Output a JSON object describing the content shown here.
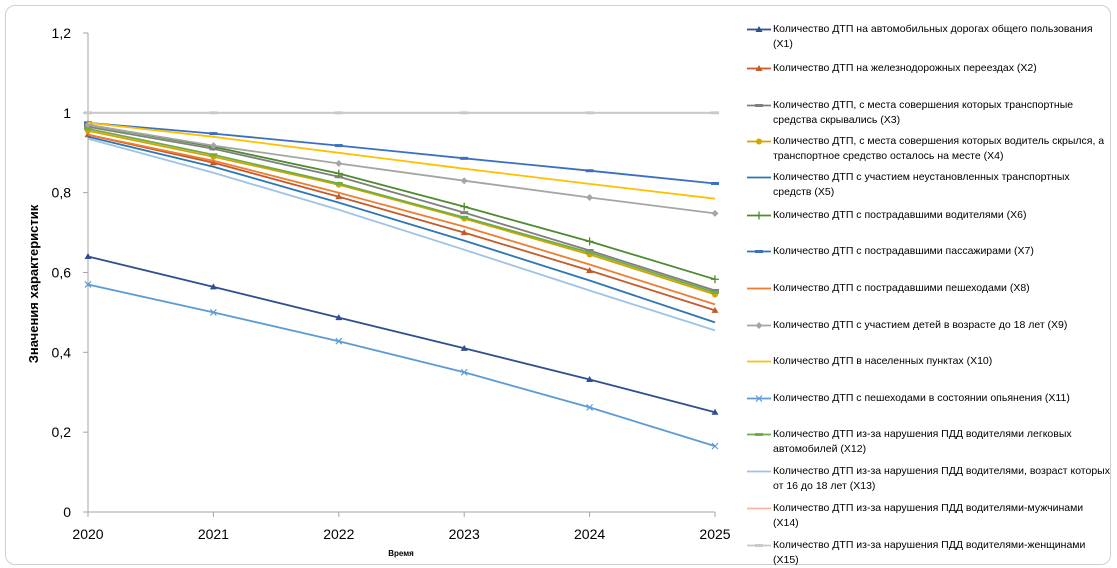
{
  "chart_data": {
    "type": "line",
    "ylabel": "Значения характеристик",
    "xlabel": "Время",
    "x": [
      "2020",
      "2021",
      "2022",
      "2023",
      "2024",
      "2025"
    ],
    "yticks": [
      "0",
      "0,2",
      "0,4",
      "0,6",
      "0,8",
      "1",
      "1,2"
    ],
    "ylim": [
      0,
      1.2
    ],
    "legend_position": "right",
    "series": [
      {
        "name": "Количество ДТП на автомобильных дорогах общего пользования (X1)",
        "color": "#2f4f8f",
        "marker": "triangle",
        "values": [
          0.64,
          0.564,
          0.487,
          0.41,
          0.332,
          0.25
        ]
      },
      {
        "name": "Количество ДТП на железнодорожных переездах (X2)",
        "color": "#c55a2a",
        "marker": "triangle",
        "values": [
          0.945,
          0.875,
          0.79,
          0.7,
          0.605,
          0.505
        ]
      },
      {
        "name": "Количество ДТП, с места совершения которых транспортные средства скрывались (X3)",
        "color": "#7f7f7f",
        "marker": "dash",
        "values": [
          0.965,
          0.91,
          0.84,
          0.75,
          0.655,
          0.555
        ]
      },
      {
        "name": "Количество ДТП, с места совершения которых водитель скрылся, а транспортное средство осталось на месте (X4)",
        "color": "#d4a500",
        "marker": "circle",
        "values": [
          0.955,
          0.89,
          0.82,
          0.735,
          0.645,
          0.545
        ]
      },
      {
        "name": "Количество ДТП с участием неустановленных транспортных средств (X5)",
        "color": "#2e75b6",
        "marker": "none",
        "values": [
          0.94,
          0.865,
          0.775,
          0.68,
          0.58,
          0.475
        ]
      },
      {
        "name": "Количество ДТП с пострадавшими водителями (X6)",
        "color": "#4e8b2f",
        "marker": "plus",
        "values": [
          0.97,
          0.915,
          0.848,
          0.765,
          0.678,
          0.583
        ]
      },
      {
        "name": "Количество ДТП с пострадавшими пассажирами (X7)",
        "color": "#3a6fc4",
        "marker": "dash",
        "values": [
          0.975,
          0.948,
          0.918,
          0.886,
          0.855,
          0.823
        ]
      },
      {
        "name": "Количество ДТП с пострадавшими пешеходами (X8)",
        "color": "#ed7d31",
        "marker": "none",
        "values": [
          0.945,
          0.88,
          0.8,
          0.715,
          0.62,
          0.52
        ]
      },
      {
        "name": "Количество ДТП с участием детей в возрасте до 18 лет (X9)",
        "color": "#a5a5a5",
        "marker": "diamond",
        "values": [
          0.97,
          0.918,
          0.873,
          0.83,
          0.788,
          0.748
        ]
      },
      {
        "name": "Количество ДТП в населенных пунктах (X10)",
        "color": "#ffc000",
        "marker": "none",
        "values": [
          0.975,
          0.94,
          0.9,
          0.86,
          0.822,
          0.785
        ]
      },
      {
        "name": "Количество ДТП с пешеходами в состоянии опьянения (X11)",
        "color": "#5b9bd5",
        "marker": "x",
        "values": [
          0.57,
          0.5,
          0.428,
          0.35,
          0.262,
          0.165
        ]
      },
      {
        "name": "Количество ДТП из-за нарушения ПДД водителями легковых автомобилей (X12)",
        "color": "#70ad47",
        "marker": "dash",
        "values": [
          0.96,
          0.895,
          0.823,
          0.738,
          0.65,
          0.55
        ]
      },
      {
        "name": "Количество ДТП из-за нарушения ПДД водителями, возраст которых от 16 до 18 лет (X13)",
        "color": "#9dc3e6",
        "marker": "none",
        "values": [
          0.935,
          0.85,
          0.757,
          0.657,
          0.555,
          0.455
        ]
      },
      {
        "name": "Количество ДТП из-за нарушения ПДД водителями-мужчинами (X14)",
        "color": "#f4b6a0",
        "marker": "none",
        "values": [
          1.0,
          1.0,
          1.0,
          1.0,
          1.0,
          1.0
        ]
      },
      {
        "name": "Количество ДТП из-за нарушения ПДД водителями-женщинами (X15)",
        "color": "#c9c9c9",
        "marker": "dash",
        "values": [
          1.0,
          1.0,
          1.0,
          1.0,
          1.0,
          1.0
        ]
      }
    ]
  }
}
